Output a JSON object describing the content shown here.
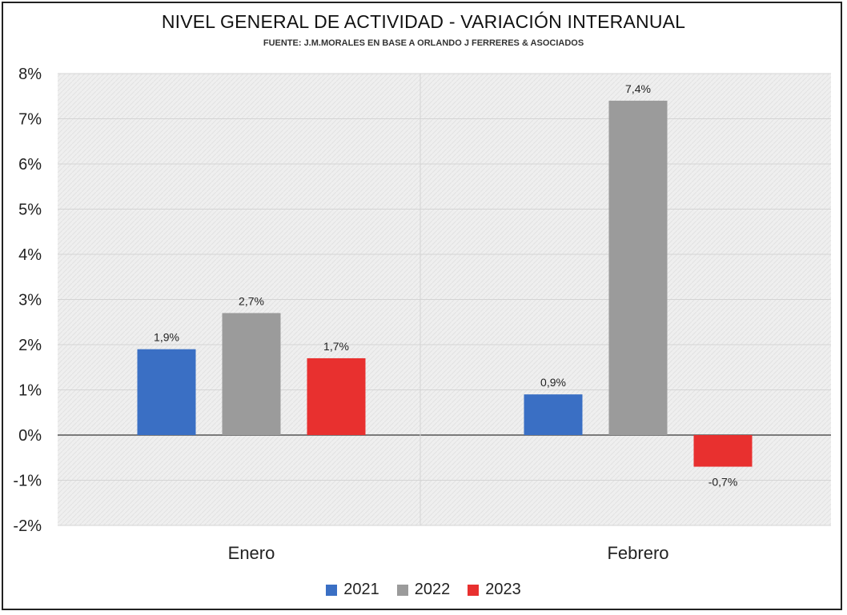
{
  "chart_data": {
    "type": "bar",
    "title": "NIVEL GENERAL DE ACTIVIDAD - VARIACIÓN INTERANUAL",
    "subtitle": "FUENTE: J.M.MORALES EN BASE A ORLANDO J FERRERES & ASOCIADOS",
    "categories": [
      "Enero",
      "Febrero"
    ],
    "series": [
      {
        "name": "2021",
        "color": "#3a6fc4",
        "values": [
          1.9,
          0.9
        ],
        "labels": [
          "1,9%",
          "0,9%"
        ]
      },
      {
        "name": "2022",
        "color": "#9b9b9b",
        "values": [
          2.7,
          7.4
        ],
        "labels": [
          "2,7%",
          "7,4%"
        ]
      },
      {
        "name": "2023",
        "color": "#e8302f",
        "values": [
          1.7,
          -0.7
        ],
        "labels": [
          "1,7%",
          "-0,7%"
        ]
      }
    ],
    "ylim": [
      -2,
      8
    ],
    "yticks": [
      8,
      7,
      6,
      5,
      4,
      3,
      2,
      1,
      0,
      -1,
      -2
    ],
    "ytick_labels": [
      "8%",
      "7%",
      "6%",
      "5%",
      "4%",
      "3%",
      "2%",
      "1%",
      "0%",
      "-1%",
      "-2%"
    ],
    "grid": true,
    "legend_position": "bottom"
  }
}
